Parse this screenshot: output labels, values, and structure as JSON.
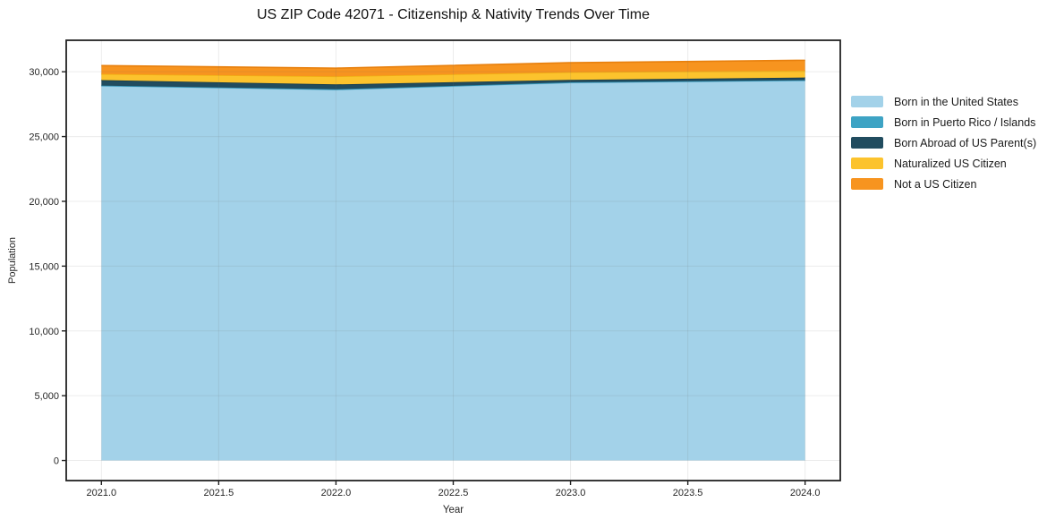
{
  "chart_data": {
    "type": "area",
    "stacked": true,
    "title": "US ZIP Code 42071 - Citizenship & Nativity Trends Over Time",
    "xlabel": "Year",
    "ylabel": "Population",
    "x": [
      2021,
      2022,
      2023,
      2024
    ],
    "series": [
      {
        "name": "Born in the United States",
        "color": "#a3d2e9",
        "edge": "#8fc6e0",
        "values": [
          28900,
          28610,
          29150,
          29310
        ]
      },
      {
        "name": "Born in Puerto Rico / Islands",
        "color": "#3da3c4",
        "edge": "#3094b6",
        "values": [
          35,
          35,
          35,
          35
        ]
      },
      {
        "name": "Born Abroad of US Parent(s)",
        "color": "#214c5f",
        "edge": "#173b4c",
        "values": [
          420,
          380,
          190,
          210
        ]
      },
      {
        "name": "Naturalized US Citizen",
        "color": "#fcc32d",
        "edge": "#f0b013",
        "values": [
          470,
          620,
          590,
          530
        ]
      },
      {
        "name": "Not a US Citizen",
        "color": "#f7941f",
        "edge": "#e8800d",
        "values": [
          650,
          635,
          735,
          800
        ]
      }
    ],
    "xticks": [
      2021.0,
      2021.5,
      2022.0,
      2022.5,
      2023.0,
      2023.5,
      2024.0
    ],
    "xtick_labels": [
      "2021.0",
      "2021.5",
      "2022.0",
      "2022.5",
      "2023.0",
      "2023.5",
      "2024.0"
    ],
    "yticks": [
      0,
      5000,
      10000,
      15000,
      20000,
      25000,
      30000
    ],
    "ytick_labels": [
      "0",
      "5,000",
      "10,000",
      "15,000",
      "20,000",
      "25,000",
      "30,000"
    ],
    "xlim": [
      2020.85,
      2024.15
    ],
    "ylim": [
      -1550,
      32430
    ],
    "grid": true,
    "legend_position": "right-outside",
    "colors": {
      "spine": "#222222",
      "tick_text": "#262626",
      "grid_rgba": "rgba(110,110,110,0.13)",
      "background": "#ffffff"
    }
  }
}
